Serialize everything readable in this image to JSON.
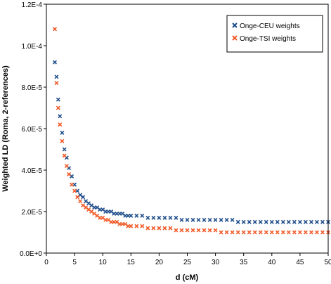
{
  "chart_data": {
    "type": "scatter",
    "title": "",
    "xlabel": "d (cM)",
    "ylabel": "Weighted LD (Roma, 2-references)",
    "xlim": [
      0,
      50
    ],
    "ylim": [
      0,
      0.00012
    ],
    "x_ticks": [
      0,
      5,
      10,
      15,
      20,
      25,
      30,
      35,
      40,
      45,
      50
    ],
    "x_tick_labels": [
      "0",
      "5",
      "10",
      "15",
      "20",
      "25",
      "30",
      "35",
      "40",
      "45",
      "50"
    ],
    "y_ticks": [
      0,
      2e-05,
      4e-05,
      6e-05,
      8e-05,
      0.0001,
      0.00012
    ],
    "y_tick_labels": [
      "0.0E+0",
      "2.0E-5",
      "4.0E-5",
      "6.0E-5",
      "8.0E-5",
      "1.0E-4",
      "1.2E-4"
    ],
    "grid": false,
    "legend_position": "top-right",
    "series": [
      {
        "name": "Onge-CEU weights",
        "color": "#1f4e8c",
        "marker": "x",
        "x": [
          1.5,
          1.8,
          2.1,
          2.4,
          2.8,
          3.2,
          3.6,
          4.0,
          4.5,
          5.0,
          5.5,
          6.0,
          6.5,
          7.0,
          7.5,
          8.0,
          8.5,
          9.0,
          9.5,
          10.0,
          10.5,
          11.0,
          11.5,
          12.0,
          12.5,
          13.0,
          13.5,
          14.0,
          14.5,
          15.0,
          16.0,
          17.0,
          18.0,
          19.0,
          20.0,
          21.0,
          22.0,
          23.0,
          24.0,
          25.0,
          26.0,
          27.0,
          28.0,
          29.0,
          30.0,
          31.0,
          32.0,
          33.0,
          34.0,
          35.0,
          36.0,
          37.0,
          38.0,
          39.0,
          40.0,
          41.0,
          42.0,
          43.0,
          44.0,
          45.0,
          46.0,
          47.0,
          48.0,
          49.0,
          50.0
        ],
        "y": [
          9.2e-05,
          8.5e-05,
          7.4e-05,
          6.6e-05,
          5.8e-05,
          5e-05,
          4.6e-05,
          4.1e-05,
          3.7e-05,
          3.3e-05,
          3e-05,
          2.8e-05,
          2.7e-05,
          2.5e-05,
          2.4e-05,
          2.3e-05,
          2.2e-05,
          2.2e-05,
          2.1e-05,
          2.1e-05,
          2e-05,
          2e-05,
          2e-05,
          1.9e-05,
          1.9e-05,
          1.9e-05,
          1.9e-05,
          1.8e-05,
          1.8e-05,
          1.8e-05,
          1.8e-05,
          1.8e-05,
          1.7e-05,
          1.7e-05,
          1.7e-05,
          1.7e-05,
          1.7e-05,
          1.7e-05,
          1.6e-05,
          1.6e-05,
          1.6e-05,
          1.6e-05,
          1.6e-05,
          1.6e-05,
          1.6e-05,
          1.6e-05,
          1.6e-05,
          1.6e-05,
          1.5e-05,
          1.5e-05,
          1.5e-05,
          1.5e-05,
          1.5e-05,
          1.5e-05,
          1.5e-05,
          1.5e-05,
          1.5e-05,
          1.5e-05,
          1.5e-05,
          1.5e-05,
          1.5e-05,
          1.5e-05,
          1.5e-05,
          1.5e-05,
          1.5e-05
        ]
      },
      {
        "name": "Onge-TSI weights",
        "color": "#f05a28",
        "marker": "x",
        "x": [
          1.5,
          1.8,
          2.1,
          2.4,
          2.8,
          3.2,
          3.6,
          4.0,
          4.5,
          5.0,
          5.5,
          6.0,
          6.5,
          7.0,
          7.5,
          8.0,
          8.5,
          9.0,
          9.5,
          10.0,
          10.5,
          11.0,
          11.5,
          12.0,
          12.5,
          13.0,
          13.5,
          14.0,
          14.5,
          15.0,
          16.0,
          17.0,
          18.0,
          19.0,
          20.0,
          21.0,
          22.0,
          23.0,
          24.0,
          25.0,
          26.0,
          27.0,
          28.0,
          29.0,
          30.0,
          31.0,
          32.0,
          33.0,
          34.0,
          35.0,
          36.0,
          37.0,
          38.0,
          39.0,
          40.0,
          41.0,
          42.0,
          43.0,
          44.0,
          45.0,
          46.0,
          47.0,
          48.0,
          49.0,
          50.0
        ],
        "y": [
          0.000108,
          8.2e-05,
          7e-05,
          6.2e-05,
          5.4e-05,
          4.7e-05,
          4.2e-05,
          3.8e-05,
          3.3e-05,
          3e-05,
          2.7e-05,
          2.5e-05,
          2.3e-05,
          2.2e-05,
          2.1e-05,
          2e-05,
          1.9e-05,
          1.8e-05,
          1.7e-05,
          1.7e-05,
          1.6e-05,
          1.6e-05,
          1.5e-05,
          1.5e-05,
          1.5e-05,
          1.4e-05,
          1.4e-05,
          1.4e-05,
          1.3e-05,
          1.3e-05,
          1.3e-05,
          1.3e-05,
          1.2e-05,
          1.2e-05,
          1.2e-05,
          1.2e-05,
          1.2e-05,
          1.1e-05,
          1.1e-05,
          1.1e-05,
          1.1e-05,
          1.1e-05,
          1.1e-05,
          1.1e-05,
          1.1e-05,
          1e-05,
          1e-05,
          1e-05,
          1e-05,
          1e-05,
          1e-05,
          1e-05,
          1e-05,
          1e-05,
          1e-05,
          1e-05,
          1e-05,
          1e-05,
          1e-05,
          1e-05,
          1e-05,
          1e-05,
          1e-05,
          1e-05,
          1e-05
        ]
      }
    ]
  }
}
